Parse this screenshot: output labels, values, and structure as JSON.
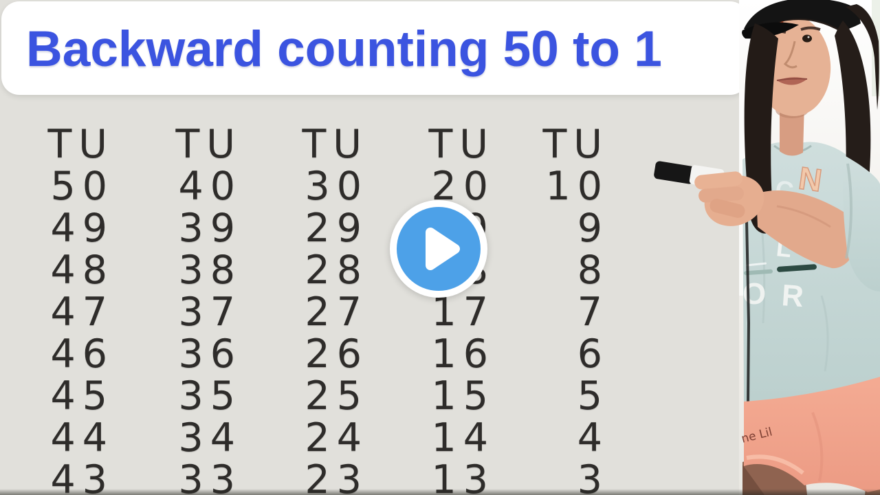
{
  "title": "Backward counting 50 to 1",
  "counting_table": {
    "columns": [
      {
        "header": "TU",
        "values": [
          "50",
          "49",
          "48",
          "47",
          "46",
          "45",
          "44",
          "43"
        ]
      },
      {
        "header": "TU",
        "values": [
          "40",
          "39",
          "38",
          "37",
          "36",
          "35",
          "34",
          "33"
        ]
      },
      {
        "header": "TU",
        "values": [
          "30",
          "29",
          "28",
          "27",
          "26",
          "25",
          "24",
          "23"
        ]
      },
      {
        "header": "TU",
        "values": [
          "20",
          "19",
          "18",
          "17",
          "16",
          "15",
          "14",
          "13"
        ]
      },
      {
        "header": "TU",
        "values": [
          "10",
          "9",
          "8",
          "7",
          "6",
          "5",
          "4",
          "3"
        ]
      }
    ]
  },
  "player": {
    "play_label": "Play",
    "play_icon": "play-icon"
  },
  "photo": {
    "shirt_letters": [
      "C",
      "N",
      "L",
      "O",
      "R"
    ],
    "shorts_text": "ne Lil"
  },
  "colors": {
    "background": "#e1e0db",
    "banner": "#ffffff",
    "title_text": "#3b54e0",
    "number_ink": "#2e2c2a",
    "play_button_blue": "#4da1e8",
    "play_ring_white": "#ffffff",
    "shirt_blue_gray": "#c8d8d6",
    "shorts_peach": "#f0a18b",
    "cap_black": "#141414"
  }
}
